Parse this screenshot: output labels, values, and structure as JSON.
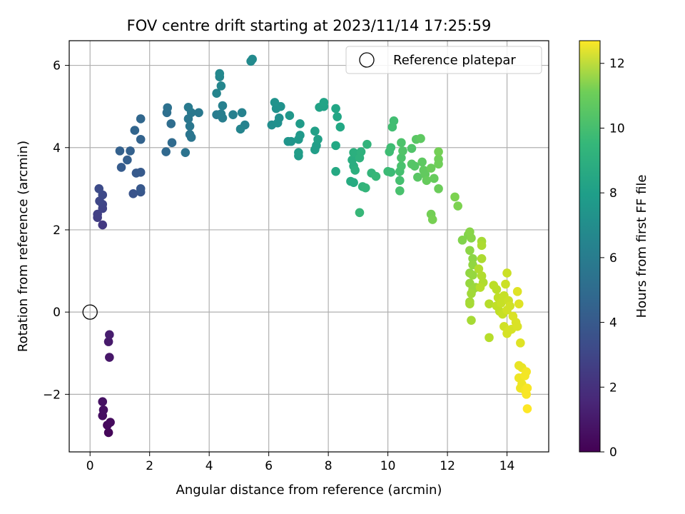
{
  "chart_data": {
    "type": "scatter",
    "title": "FOV centre drift starting at 2023/11/14 17:25:59",
    "xlabel": "Angular distance from reference (arcmin)",
    "ylabel": "Rotation from reference (arcmin)",
    "xlim": [
      -0.7,
      15.4
    ],
    "ylim": [
      -3.4,
      6.6
    ],
    "xticks": [
      0,
      2,
      4,
      6,
      8,
      10,
      12,
      14
    ],
    "yticks": [
      -2,
      0,
      2,
      4,
      6
    ],
    "xtick_labels": [
      "0",
      "2",
      "4",
      "6",
      "8",
      "10",
      "12",
      "14"
    ],
    "ytick_labels": [
      "−2",
      "0",
      "2",
      "4",
      "6"
    ],
    "grid": true,
    "colormap": "viridis",
    "colorbar": {
      "label": "Hours from first FF file",
      "range": [
        0,
        12.7
      ],
      "ticks": [
        0,
        2,
        4,
        6,
        8,
        10,
        12
      ],
      "tick_labels": [
        "0",
        "2",
        "4",
        "6",
        "8",
        "10",
        "12"
      ]
    },
    "legend": {
      "placement": "top-right",
      "entries": [
        {
          "label": "Reference platepar",
          "marker": "open-circle"
        }
      ]
    },
    "reference_point": {
      "x": 0,
      "y": 0
    },
    "points": [
      {
        "x": 0.62,
        "y": -2.93,
        "c": 0.2
      },
      {
        "x": 0.58,
        "y": -2.75,
        "c": 0.3
      },
      {
        "x": 0.68,
        "y": -2.68,
        "c": 0.35
      },
      {
        "x": 0.42,
        "y": -2.52,
        "c": 0.5
      },
      {
        "x": 0.45,
        "y": -2.38,
        "c": 0.55
      },
      {
        "x": 0.42,
        "y": -2.18,
        "c": 0.6
      },
      {
        "x": 0.65,
        "y": -1.1,
        "c": 0.8
      },
      {
        "x": 0.62,
        "y": -0.72,
        "c": 0.9
      },
      {
        "x": 0.65,
        "y": -0.55,
        "c": 1.0
      },
      {
        "x": 0.42,
        "y": 2.12,
        "c": 2.1
      },
      {
        "x": 0.25,
        "y": 2.3,
        "c": 2.3
      },
      {
        "x": 0.25,
        "y": 2.38,
        "c": 2.4
      },
      {
        "x": 0.42,
        "y": 2.52,
        "c": 2.5
      },
      {
        "x": 0.42,
        "y": 2.62,
        "c": 2.6
      },
      {
        "x": 0.32,
        "y": 2.7,
        "c": 2.7
      },
      {
        "x": 0.42,
        "y": 2.85,
        "c": 2.8
      },
      {
        "x": 0.3,
        "y": 3.0,
        "c": 2.9
      },
      {
        "x": 1.45,
        "y": 2.88,
        "c": 3.3
      },
      {
        "x": 1.7,
        "y": 2.92,
        "c": 3.4
      },
      {
        "x": 1.7,
        "y": 3.0,
        "c": 3.5
      },
      {
        "x": 1.55,
        "y": 3.38,
        "c": 3.6
      },
      {
        "x": 1.7,
        "y": 3.4,
        "c": 3.6
      },
      {
        "x": 1.05,
        "y": 3.52,
        "c": 3.7
      },
      {
        "x": 1.25,
        "y": 3.7,
        "c": 3.8
      },
      {
        "x": 1.35,
        "y": 3.92,
        "c": 3.9
      },
      {
        "x": 1.0,
        "y": 3.92,
        "c": 3.9
      },
      {
        "x": 1.7,
        "y": 4.2,
        "c": 4.0
      },
      {
        "x": 1.5,
        "y": 4.42,
        "c": 4.1
      },
      {
        "x": 1.7,
        "y": 4.7,
        "c": 4.2
      },
      {
        "x": 2.55,
        "y": 3.9,
        "c": 4.3
      },
      {
        "x": 2.75,
        "y": 4.12,
        "c": 4.4
      },
      {
        "x": 2.72,
        "y": 4.58,
        "c": 4.5
      },
      {
        "x": 2.58,
        "y": 4.85,
        "c": 4.6
      },
      {
        "x": 2.6,
        "y": 4.97,
        "c": 4.7
      },
      {
        "x": 3.2,
        "y": 3.88,
        "c": 4.8
      },
      {
        "x": 3.4,
        "y": 4.25,
        "c": 4.9
      },
      {
        "x": 3.35,
        "y": 4.32,
        "c": 4.9
      },
      {
        "x": 3.35,
        "y": 4.52,
        "c": 5.0
      },
      {
        "x": 3.3,
        "y": 4.7,
        "c": 5.0
      },
      {
        "x": 3.4,
        "y": 4.85,
        "c": 5.1
      },
      {
        "x": 3.65,
        "y": 4.85,
        "c": 5.1
      },
      {
        "x": 3.3,
        "y": 4.98,
        "c": 5.2
      },
      {
        "x": 4.25,
        "y": 4.8,
        "c": 5.3
      },
      {
        "x": 4.45,
        "y": 4.72,
        "c": 5.4
      },
      {
        "x": 4.4,
        "y": 4.82,
        "c": 5.4
      },
      {
        "x": 4.45,
        "y": 5.02,
        "c": 5.5
      },
      {
        "x": 4.8,
        "y": 4.8,
        "c": 5.5
      },
      {
        "x": 5.1,
        "y": 4.85,
        "c": 5.6
      },
      {
        "x": 5.2,
        "y": 4.55,
        "c": 5.6
      },
      {
        "x": 5.05,
        "y": 4.45,
        "c": 5.7
      },
      {
        "x": 4.25,
        "y": 5.32,
        "c": 5.7
      },
      {
        "x": 4.4,
        "y": 5.5,
        "c": 5.8
      },
      {
        "x": 4.35,
        "y": 5.72,
        "c": 5.8
      },
      {
        "x": 4.35,
        "y": 5.8,
        "c": 5.9
      },
      {
        "x": 5.4,
        "y": 6.1,
        "c": 6.0
      },
      {
        "x": 5.45,
        "y": 6.15,
        "c": 6.0
      },
      {
        "x": 6.1,
        "y": 4.55,
        "c": 6.2
      },
      {
        "x": 6.3,
        "y": 4.6,
        "c": 6.3
      },
      {
        "x": 6.35,
        "y": 4.72,
        "c": 6.3
      },
      {
        "x": 6.25,
        "y": 4.95,
        "c": 6.4
      },
      {
        "x": 6.4,
        "y": 5.0,
        "c": 6.4
      },
      {
        "x": 6.2,
        "y": 5.1,
        "c": 6.5
      },
      {
        "x": 6.65,
        "y": 4.15,
        "c": 6.6
      },
      {
        "x": 6.75,
        "y": 4.15,
        "c": 6.6
      },
      {
        "x": 6.7,
        "y": 4.78,
        "c": 6.7
      },
      {
        "x": 7.0,
        "y": 4.2,
        "c": 6.8
      },
      {
        "x": 7.05,
        "y": 4.3,
        "c": 6.8
      },
      {
        "x": 7.05,
        "y": 4.58,
        "c": 6.9
      },
      {
        "x": 7.0,
        "y": 3.8,
        "c": 6.9
      },
      {
        "x": 7.0,
        "y": 3.88,
        "c": 7.0
      },
      {
        "x": 7.55,
        "y": 3.95,
        "c": 7.1
      },
      {
        "x": 7.6,
        "y": 4.05,
        "c": 7.1
      },
      {
        "x": 7.65,
        "y": 4.2,
        "c": 7.2
      },
      {
        "x": 7.55,
        "y": 4.4,
        "c": 7.2
      },
      {
        "x": 7.7,
        "y": 4.98,
        "c": 7.3
      },
      {
        "x": 7.85,
        "y": 5.0,
        "c": 7.3
      },
      {
        "x": 7.85,
        "y": 5.1,
        "c": 7.4
      },
      {
        "x": 8.25,
        "y": 4.95,
        "c": 7.5
      },
      {
        "x": 8.3,
        "y": 4.75,
        "c": 7.5
      },
      {
        "x": 8.4,
        "y": 4.5,
        "c": 7.6
      },
      {
        "x": 8.25,
        "y": 4.05,
        "c": 7.6
      },
      {
        "x": 8.25,
        "y": 3.42,
        "c": 7.7
      },
      {
        "x": 8.75,
        "y": 3.18,
        "c": 7.8
      },
      {
        "x": 8.85,
        "y": 3.15,
        "c": 7.8
      },
      {
        "x": 8.8,
        "y": 3.7,
        "c": 7.9
      },
      {
        "x": 8.85,
        "y": 3.55,
        "c": 7.9
      },
      {
        "x": 8.9,
        "y": 3.45,
        "c": 8.0
      },
      {
        "x": 8.85,
        "y": 3.88,
        "c": 8.0
      },
      {
        "x": 9.05,
        "y": 3.75,
        "c": 8.1
      },
      {
        "x": 9.1,
        "y": 3.9,
        "c": 8.1
      },
      {
        "x": 9.3,
        "y": 4.08,
        "c": 8.2
      },
      {
        "x": 9.15,
        "y": 3.05,
        "c": 8.2
      },
      {
        "x": 9.25,
        "y": 3.02,
        "c": 8.3
      },
      {
        "x": 9.45,
        "y": 3.38,
        "c": 8.3
      },
      {
        "x": 9.6,
        "y": 3.3,
        "c": 8.4
      },
      {
        "x": 9.05,
        "y": 2.42,
        "c": 8.4
      },
      {
        "x": 10.0,
        "y": 3.42,
        "c": 8.6
      },
      {
        "x": 10.1,
        "y": 3.4,
        "c": 8.6
      },
      {
        "x": 10.05,
        "y": 3.9,
        "c": 8.7
      },
      {
        "x": 10.1,
        "y": 4.0,
        "c": 8.7
      },
      {
        "x": 10.2,
        "y": 4.65,
        "c": 8.8
      },
      {
        "x": 10.15,
        "y": 4.5,
        "c": 8.8
      },
      {
        "x": 10.4,
        "y": 3.42,
        "c": 8.9
      },
      {
        "x": 10.4,
        "y": 3.2,
        "c": 8.9
      },
      {
        "x": 10.4,
        "y": 2.95,
        "c": 9.0
      },
      {
        "x": 10.45,
        "y": 3.55,
        "c": 9.0
      },
      {
        "x": 10.45,
        "y": 3.75,
        "c": 9.1
      },
      {
        "x": 10.45,
        "y": 4.12,
        "c": 9.1
      },
      {
        "x": 10.5,
        "y": 3.92,
        "c": 9.2
      },
      {
        "x": 10.8,
        "y": 3.98,
        "c": 9.2
      },
      {
        "x": 10.8,
        "y": 3.6,
        "c": 9.3
      },
      {
        "x": 10.9,
        "y": 3.55,
        "c": 9.3
      },
      {
        "x": 11.0,
        "y": 3.28,
        "c": 9.4
      },
      {
        "x": 10.95,
        "y": 4.2,
        "c": 9.4
      },
      {
        "x": 11.1,
        "y": 4.22,
        "c": 9.5
      },
      {
        "x": 11.15,
        "y": 3.65,
        "c": 9.5
      },
      {
        "x": 11.2,
        "y": 3.45,
        "c": 9.6
      },
      {
        "x": 11.25,
        "y": 3.35,
        "c": 9.6
      },
      {
        "x": 11.3,
        "y": 3.2,
        "c": 9.7
      },
      {
        "x": 11.55,
        "y": 3.25,
        "c": 9.7
      },
      {
        "x": 11.45,
        "y": 3.5,
        "c": 9.8
      },
      {
        "x": 11.7,
        "y": 3.0,
        "c": 9.8
      },
      {
        "x": 11.7,
        "y": 3.6,
        "c": 9.9
      },
      {
        "x": 11.7,
        "y": 3.72,
        "c": 9.9
      },
      {
        "x": 11.7,
        "y": 3.9,
        "c": 10.0
      },
      {
        "x": 11.45,
        "y": 2.38,
        "c": 10.0
      },
      {
        "x": 11.5,
        "y": 2.25,
        "c": 10.1
      },
      {
        "x": 12.25,
        "y": 2.8,
        "c": 10.2
      },
      {
        "x": 12.35,
        "y": 2.58,
        "c": 10.2
      },
      {
        "x": 12.5,
        "y": 1.75,
        "c": 10.3
      },
      {
        "x": 12.7,
        "y": 1.88,
        "c": 10.3
      },
      {
        "x": 12.75,
        "y": 1.95,
        "c": 10.4
      },
      {
        "x": 12.8,
        "y": 1.8,
        "c": 10.4
      },
      {
        "x": 12.75,
        "y": 1.5,
        "c": 10.5
      },
      {
        "x": 12.85,
        "y": 1.3,
        "c": 10.5
      },
      {
        "x": 12.85,
        "y": 1.15,
        "c": 10.6
      },
      {
        "x": 12.75,
        "y": 0.95,
        "c": 10.6
      },
      {
        "x": 12.85,
        "y": 0.9,
        "c": 10.7
      },
      {
        "x": 12.75,
        "y": 0.7,
        "c": 10.7
      },
      {
        "x": 12.85,
        "y": 0.55,
        "c": 10.8
      },
      {
        "x": 12.95,
        "y": 0.6,
        "c": 10.8
      },
      {
        "x": 12.8,
        "y": 0.45,
        "c": 10.9
      },
      {
        "x": 12.75,
        "y": 0.25,
        "c": 10.9
      },
      {
        "x": 12.75,
        "y": 0.2,
        "c": 11.0
      },
      {
        "x": 12.8,
        "y": -0.2,
        "c": 11.0
      },
      {
        "x": 13.15,
        "y": 1.72,
        "c": 11.0
      },
      {
        "x": 13.15,
        "y": 1.62,
        "c": 11.1
      },
      {
        "x": 13.15,
        "y": 1.3,
        "c": 11.1
      },
      {
        "x": 13.05,
        "y": 1.05,
        "c": 11.2
      },
      {
        "x": 13.15,
        "y": 0.88,
        "c": 11.2
      },
      {
        "x": 13.2,
        "y": 0.72,
        "c": 11.2
      },
      {
        "x": 13.1,
        "y": 0.6,
        "c": 11.3
      },
      {
        "x": 13.4,
        "y": 0.2,
        "c": 11.3
      },
      {
        "x": 13.4,
        "y": -0.62,
        "c": 11.3
      },
      {
        "x": 13.55,
        "y": 0.65,
        "c": 11.4
      },
      {
        "x": 13.65,
        "y": 0.55,
        "c": 11.4
      },
      {
        "x": 13.7,
        "y": 0.35,
        "c": 11.5
      },
      {
        "x": 13.65,
        "y": 0.15,
        "c": 11.5
      },
      {
        "x": 13.75,
        "y": 0.02,
        "c": 11.5
      },
      {
        "x": 13.85,
        "y": -0.05,
        "c": 11.6
      },
      {
        "x": 13.8,
        "y": 0.22,
        "c": 11.6
      },
      {
        "x": 13.9,
        "y": 0.4,
        "c": 11.6
      },
      {
        "x": 13.95,
        "y": 0.68,
        "c": 11.7
      },
      {
        "x": 14.0,
        "y": 0.95,
        "c": 11.7
      },
      {
        "x": 14.05,
        "y": 0.28,
        "c": 11.7
      },
      {
        "x": 14.1,
        "y": 0.15,
        "c": 11.8
      },
      {
        "x": 14.0,
        "y": 0.05,
        "c": 11.8
      },
      {
        "x": 13.9,
        "y": -0.35,
        "c": 11.8
      },
      {
        "x": 14.05,
        "y": -0.45,
        "c": 11.9
      },
      {
        "x": 14.0,
        "y": -0.52,
        "c": 11.9
      },
      {
        "x": 14.15,
        "y": -0.42,
        "c": 11.9
      },
      {
        "x": 14.2,
        "y": -0.1,
        "c": 12.0
      },
      {
        "x": 14.3,
        "y": -0.25,
        "c": 12.0
      },
      {
        "x": 14.35,
        "y": -0.35,
        "c": 12.0
      },
      {
        "x": 14.4,
        "y": 0.2,
        "c": 12.1
      },
      {
        "x": 14.35,
        "y": 0.5,
        "c": 12.1
      },
      {
        "x": 14.45,
        "y": -0.75,
        "c": 12.1
      },
      {
        "x": 14.4,
        "y": -1.3,
        "c": 12.3
      },
      {
        "x": 14.5,
        "y": -1.35,
        "c": 12.3
      },
      {
        "x": 14.4,
        "y": -1.6,
        "c": 12.4
      },
      {
        "x": 14.5,
        "y": -1.75,
        "c": 12.4
      },
      {
        "x": 14.45,
        "y": -1.85,
        "c": 12.4
      },
      {
        "x": 14.6,
        "y": -1.55,
        "c": 12.5
      },
      {
        "x": 14.65,
        "y": -1.45,
        "c": 12.5
      },
      {
        "x": 14.6,
        "y": -1.9,
        "c": 12.5
      },
      {
        "x": 14.65,
        "y": -2.0,
        "c": 12.6
      },
      {
        "x": 14.68,
        "y": -1.85,
        "c": 12.6
      },
      {
        "x": 14.68,
        "y": -2.35,
        "c": 12.7
      }
    ]
  }
}
